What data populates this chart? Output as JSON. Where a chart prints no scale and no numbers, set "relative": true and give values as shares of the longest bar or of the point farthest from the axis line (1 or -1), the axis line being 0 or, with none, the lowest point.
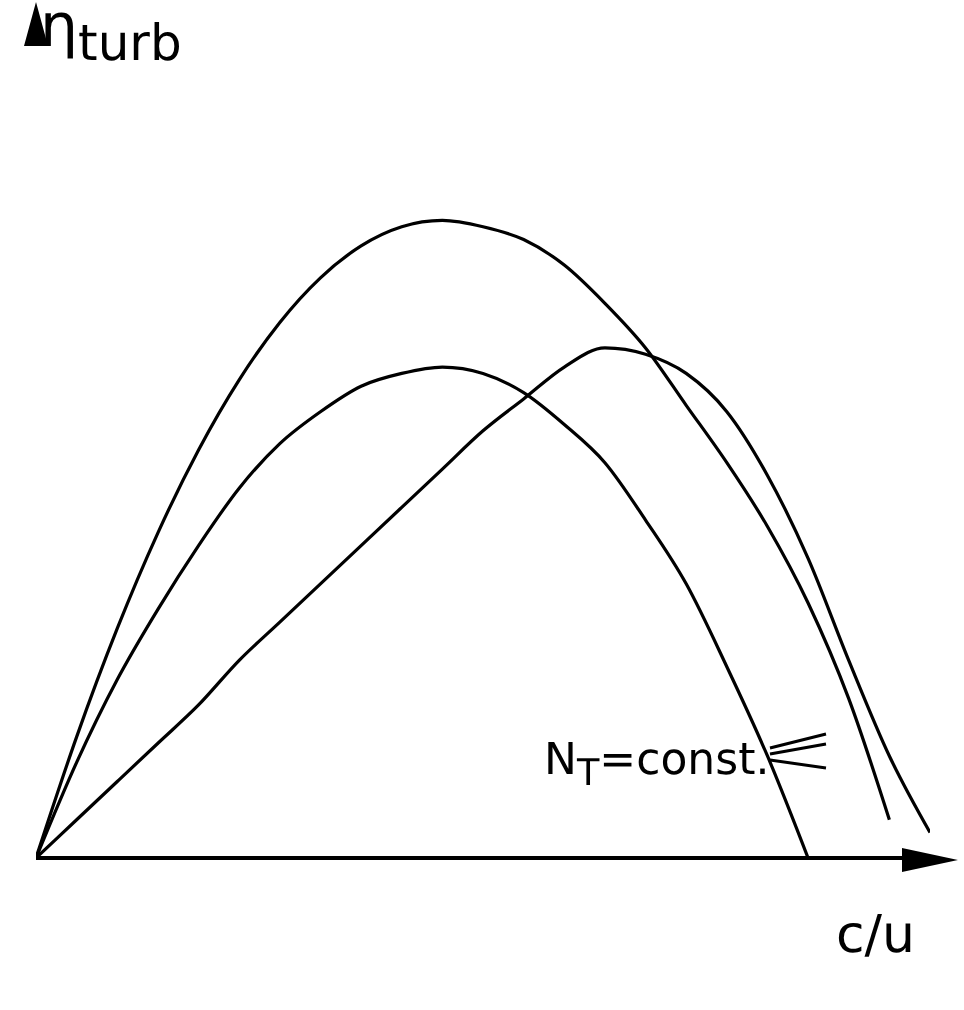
{
  "chart_data": {
    "type": "line",
    "relative": true,
    "xlabel": "c/u",
    "ylabel": "η$_{turb}$",
    "annotations": [
      "N$_{T}$=const."
    ],
    "categories": [
      null,
      null,
      null,
      null,
      null,
      null,
      null,
      null,
      null,
      null,
      null,
      null,
      null,
      null,
      null,
      null,
      null,
      null,
      null,
      null,
      null,
      null,
      null
    ],
    "series": [
      {
        "color": "#000000",
        "values": [
          0,
          0.19,
          0.36,
          0.51,
          0.64,
          0.75,
          0.84,
          0.91,
          0.96,
          0.99,
          1,
          0.99,
          0.97,
          0.93,
          0.87,
          0.8,
          0.71,
          0.62,
          0.52,
          0.4,
          0.25,
          0.06,
          null
        ]
      },
      {
        "color": "#000000",
        "values": [
          0,
          0.15,
          0.28,
          0.39,
          0.49,
          0.58,
          0.65,
          0.7,
          0.74,
          0.76,
          0.77,
          0.76,
          0.73,
          0.68,
          0.62,
          0.53,
          0.43,
          0.3,
          0.16,
          0,
          null,
          null,
          null
        ]
      },
      {
        "color": "#000000",
        "values": [
          0,
          0.06,
          0.12,
          0.18,
          0.24,
          0.31,
          0.37,
          0.43,
          0.49,
          0.55,
          0.61,
          0.67,
          0.72,
          0.77,
          0.8,
          0.79,
          0.76,
          0.7,
          0.6,
          0.47,
          0.31,
          0.16,
          0.04
        ]
      }
    ],
    "grid": false,
    "legend": false,
    "marker": "none",
    "line_style": "solid"
  }
}
